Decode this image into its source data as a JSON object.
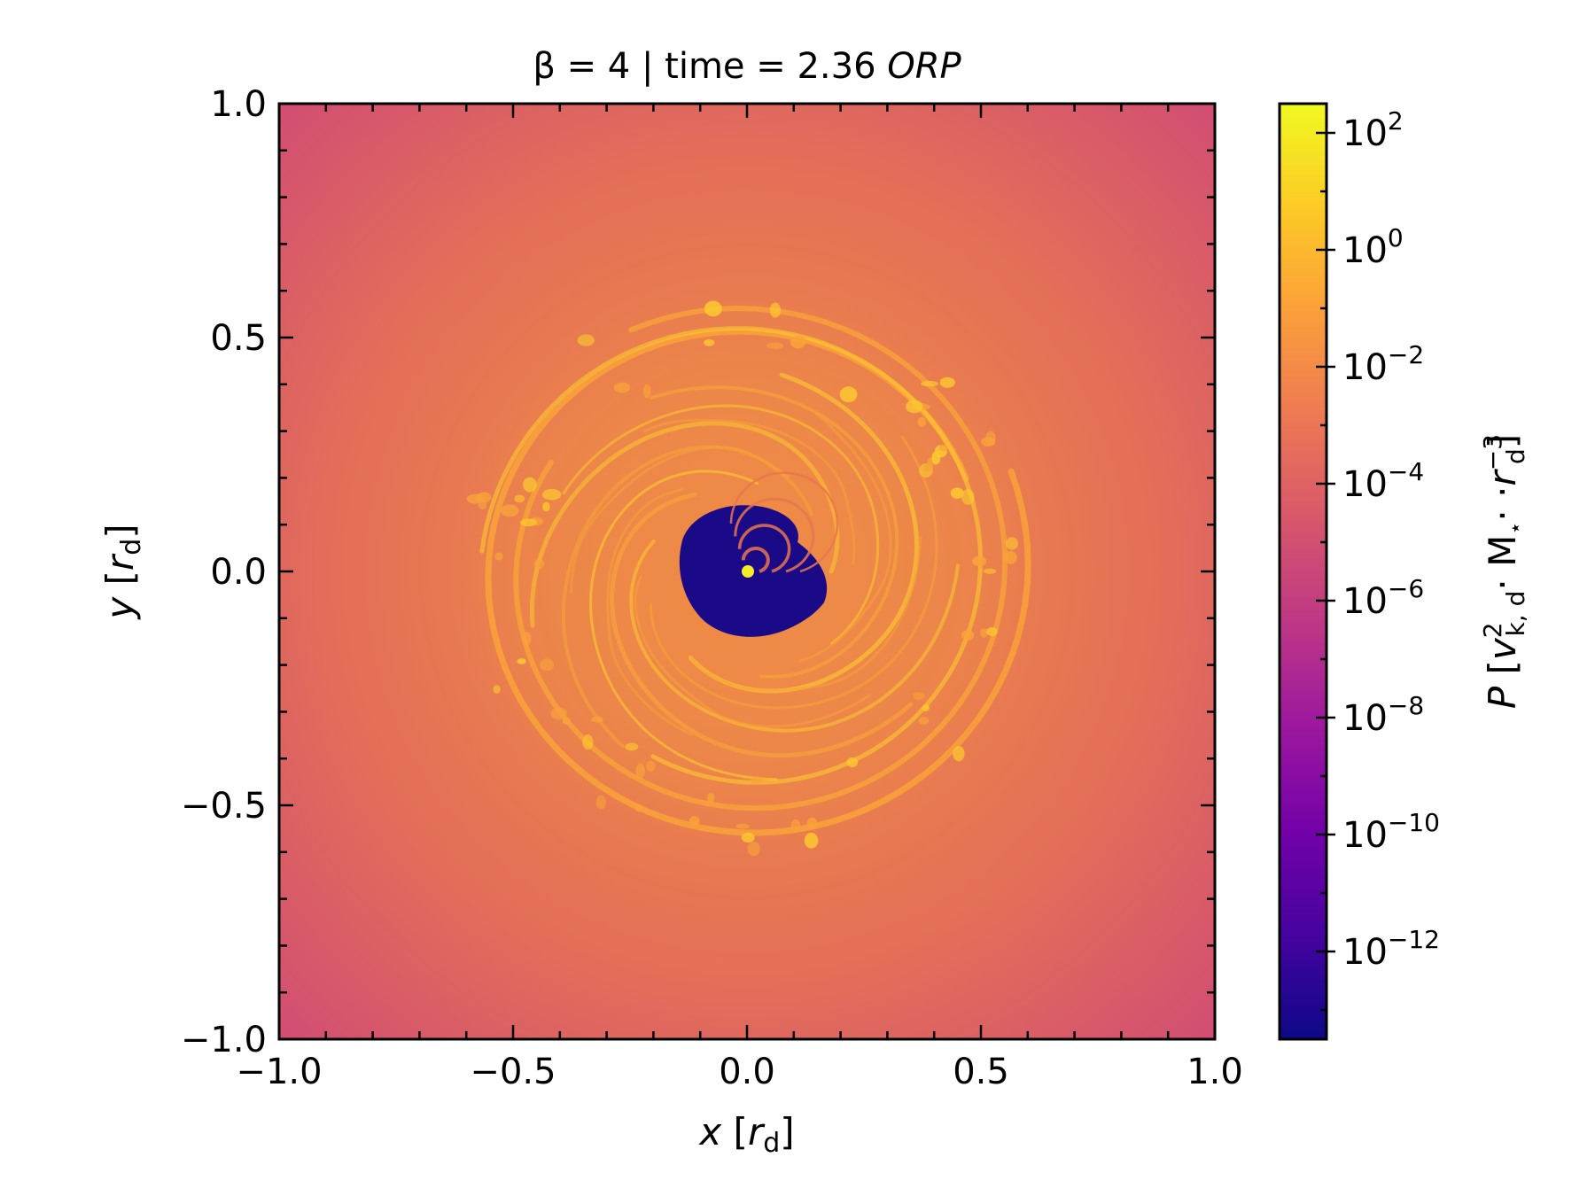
{
  "chart_data": {
    "type": "heatmap",
    "title": {
      "prefix": "β = 4 | time = 2.36 ",
      "unit": "ORP"
    },
    "xlabel": {
      "var": "x",
      "open": " [",
      "sym": "r",
      "sub": "d",
      "close": "]"
    },
    "ylabel": {
      "var": "y",
      "open": " [",
      "sym": "r",
      "sub": "d",
      "close": "]"
    },
    "xlim": [
      -1.0,
      1.0
    ],
    "ylim": [
      -1.0,
      1.0
    ],
    "xticks": [
      {
        "value": -1.0,
        "label": "−1.0"
      },
      {
        "value": -0.5,
        "label": "−0.5"
      },
      {
        "value": 0.0,
        "label": "0.0"
      },
      {
        "value": 0.5,
        "label": "0.5"
      },
      {
        "value": 1.0,
        "label": "1.0"
      }
    ],
    "yticks": [
      {
        "value": -1.0,
        "label": "−1.0"
      },
      {
        "value": -0.5,
        "label": "−0.5"
      },
      {
        "value": 0.0,
        "label": "0.0"
      },
      {
        "value": 0.5,
        "label": "0.5"
      },
      {
        "value": 1.0,
        "label": "1.0"
      }
    ],
    "grid": false,
    "colormap": "plasma",
    "colorbar": {
      "scale": "log",
      "range_exp": [
        -13.5,
        2.5
      ],
      "ticks": [
        {
          "exp": 2,
          "base": "10",
          "sup": "2"
        },
        {
          "exp": 0,
          "base": "10",
          "sup": "0"
        },
        {
          "exp": -2,
          "base": "10",
          "sup": "−2"
        },
        {
          "exp": -4,
          "base": "10",
          "sup": "−4"
        },
        {
          "exp": -6,
          "base": "10",
          "sup": "−6"
        },
        {
          "exp": -8,
          "base": "10",
          "sup": "−8"
        },
        {
          "exp": -10,
          "base": "10",
          "sup": "−10"
        },
        {
          "exp": -12,
          "base": "10",
          "sup": "−12"
        }
      ],
      "label": {
        "var": "P",
        "open": " [",
        "v": "v",
        "v_sup": "2",
        "v_sub": "k, d",
        "mid": "· M",
        "star": "⋆",
        "dots": "· ·",
        "r": "r",
        "r_sup": "−3",
        "r_sub": "d",
        "close": "]"
      }
    },
    "field_description_levels": {
      "outer_corners": "10^-5 (pink-magenta)",
      "disk_body": "10^-3 (orange)",
      "spiral_filaments": "10^-1 (yellow-orange)",
      "central_cavity": "10^-13 (dark navy)",
      "central_point": "10^2 (yellow)"
    },
    "colors": {
      "corner": "#d14d73",
      "disk": "#e8754e",
      "arm": "#f9a23a",
      "knot": "#fcc92f",
      "cavity": "#1a0a87",
      "core": "#f4ee27"
    }
  }
}
